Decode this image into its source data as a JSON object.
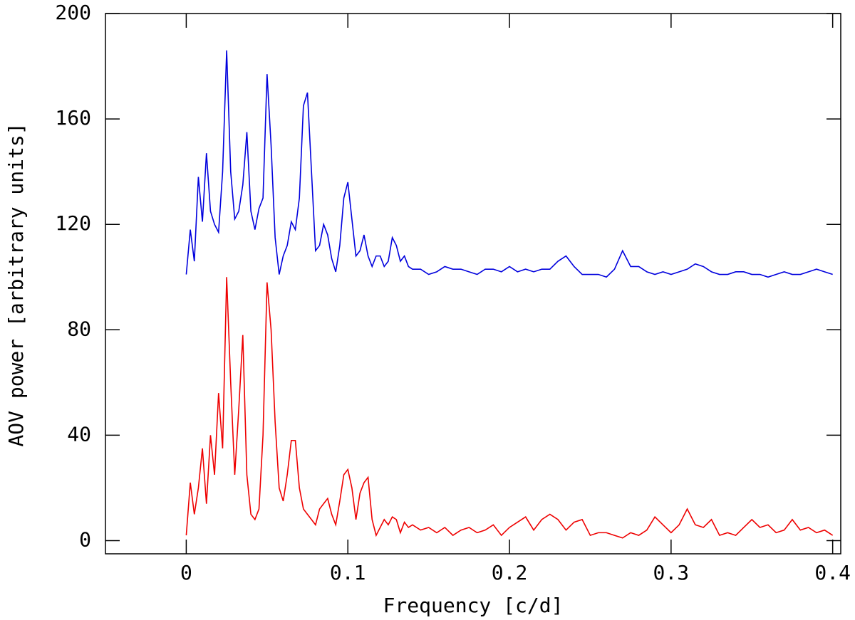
{
  "chart_data": {
    "type": "line",
    "xlabel": "Frequency [c/d]",
    "ylabel": "AOV power [arbitrary units]",
    "x": [
      0,
      0.0025,
      0.005,
      0.0075,
      0.01,
      0.0125,
      0.015,
      0.0175,
      0.02,
      0.0225,
      0.025,
      0.0275,
      0.03,
      0.0325,
      0.035,
      0.0375,
      0.04,
      0.0425,
      0.045,
      0.0475,
      0.05,
      0.0525,
      0.055,
      0.0575,
      0.06,
      0.0625,
      0.065,
      0.0675,
      0.07,
      0.0725,
      0.075,
      0.0775,
      0.08,
      0.0825,
      0.085,
      0.0875,
      0.09,
      0.0925,
      0.095,
      0.0975,
      0.1,
      0.1025,
      0.105,
      0.1075,
      0.11,
      0.1125,
      0.115,
      0.1175,
      0.12,
      0.1225,
      0.125,
      0.1275,
      0.13,
      0.1325,
      0.135,
      0.1375,
      0.14,
      0.145,
      0.15,
      0.155,
      0.16,
      0.165,
      0.17,
      0.175,
      0.18,
      0.185,
      0.19,
      0.195,
      0.2,
      0.205,
      0.21,
      0.215,
      0.22,
      0.225,
      0.23,
      0.235,
      0.24,
      0.245,
      0.25,
      0.255,
      0.26,
      0.265,
      0.27,
      0.275,
      0.28,
      0.285,
      0.29,
      0.295,
      0.3,
      0.305,
      0.31,
      0.315,
      0.32,
      0.325,
      0.33,
      0.335,
      0.34,
      0.345,
      0.35,
      0.355,
      0.36,
      0.365,
      0.37,
      0.375,
      0.38,
      0.385,
      0.39,
      0.395,
      0.4
    ],
    "series": [
      {
        "color": "#0000dd",
        "values": [
          101,
          118,
          106,
          138,
          121,
          147,
          125,
          120,
          117,
          140,
          186,
          140,
          122,
          125,
          135,
          155,
          125,
          118,
          126,
          130,
          177,
          150,
          115,
          101,
          108,
          112,
          121,
          118,
          130,
          165,
          170,
          140,
          110,
          112,
          120,
          116,
          107,
          102,
          112,
          130,
          136,
          122,
          108,
          110,
          116,
          108,
          104,
          108,
          108,
          104,
          106,
          115,
          112,
          106,
          108,
          104,
          103,
          103,
          101,
          102,
          104,
          103,
          103,
          102,
          101,
          103,
          103,
          102,
          104,
          102,
          103,
          102,
          103,
          103,
          106,
          108,
          104,
          101,
          101,
          101,
          100,
          103,
          110,
          104,
          104,
          102,
          101,
          102,
          101,
          102,
          103,
          105,
          104,
          102,
          101,
          101,
          102,
          102,
          101,
          101,
          100,
          101,
          102,
          101,
          101,
          102,
          103,
          102,
          101
        ]
      },
      {
        "color": "#ee0000",
        "values": [
          2,
          22,
          10,
          20,
          35,
          14,
          40,
          25,
          56,
          35,
          100,
          60,
          25,
          50,
          78,
          25,
          10,
          8,
          12,
          40,
          98,
          80,
          45,
          20,
          15,
          25,
          38,
          38,
          20,
          12,
          10,
          8,
          6,
          12,
          14,
          16,
          10,
          6,
          15,
          25,
          27,
          20,
          8,
          18,
          22,
          24,
          8,
          2,
          5,
          8,
          6,
          9,
          8,
          3,
          7,
          5,
          6,
          4,
          5,
          3,
          5,
          2,
          4,
          5,
          3,
          4,
          6,
          2,
          5,
          7,
          9,
          4,
          8,
          10,
          8,
          4,
          7,
          8,
          2,
          3,
          3,
          2,
          1,
          3,
          2,
          4,
          9,
          6,
          3,
          6,
          12,
          6,
          5,
          8,
          2,
          3,
          2,
          5,
          8,
          5,
          6,
          3,
          4,
          8,
          4,
          5,
          3,
          4,
          2
        ]
      }
    ],
    "xlim": [
      -0.05,
      0.405
    ],
    "xticks": [
      0,
      0.1,
      0.2,
      0.3,
      0.4
    ],
    "ylim": [
      -5,
      200
    ],
    "yticks": [
      0,
      40,
      80,
      120,
      160,
      200
    ]
  }
}
